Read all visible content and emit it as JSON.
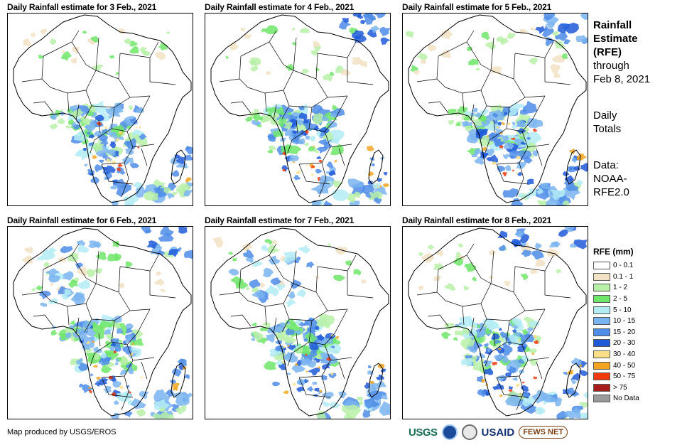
{
  "panels": [
    {
      "title": "Daily Rainfall estimate for 3 Feb., 2021",
      "date": "3 Feb., 2021"
    },
    {
      "title": "Daily Rainfall estimate for 4 Feb., 2021",
      "date": "4 Feb., 2021"
    },
    {
      "title": "Daily Rainfall estimate for 5 Feb., 2021",
      "date": "5 Feb., 2021"
    },
    {
      "title": "Daily Rainfall estimate for 6 Feb., 2021",
      "date": "6 Feb., 2021"
    },
    {
      "title": "Daily Rainfall estimate for 7 Feb., 2021",
      "date": "7 Feb., 2021"
    },
    {
      "title": "Daily Rainfall estimate for 8 Feb., 2021",
      "date": "8 Feb., 2021"
    }
  ],
  "sidebar": {
    "title_line1": "Rainfall",
    "title_line2": "Estimate",
    "title_line3": "(RFE)",
    "through_label": "through",
    "through_date": "Feb 8, 2021",
    "totals_line1": "Daily",
    "totals_line2": "Totals",
    "data_line1": "Data:",
    "data_line2": "NOAA-",
    "data_line3": "RFE2.0"
  },
  "legend": {
    "title": "RFE (mm)",
    "classes": [
      {
        "label": "0 - 0.1",
        "color": "#ffffff"
      },
      {
        "label": "0.1 - 1",
        "color": "#f2e2c4"
      },
      {
        "label": "1 - 2",
        "color": "#b8f0a8"
      },
      {
        "label": "2 - 5",
        "color": "#6ee66a"
      },
      {
        "label": "5 - 10",
        "color": "#b4ecf4"
      },
      {
        "label": "10 - 15",
        "color": "#7ab4f0"
      },
      {
        "label": "15 - 20",
        "color": "#4e8ce8"
      },
      {
        "label": "20 - 30",
        "color": "#1e5ad8"
      },
      {
        "label": "30 - 40",
        "color": "#f8e08a"
      },
      {
        "label": "40 - 50",
        "color": "#f2a51e"
      },
      {
        "label": "50 - 75",
        "color": "#f03a0e"
      },
      {
        "label": "> 75",
        "color": "#a81c1c"
      },
      {
        "label": "No Data",
        "color": "#9a9a9a"
      }
    ]
  },
  "credit": "Map produced by USGS/EROS",
  "logos": {
    "usgs": "USGS",
    "usaid": "USAID",
    "fews": "FEWS NET"
  }
}
